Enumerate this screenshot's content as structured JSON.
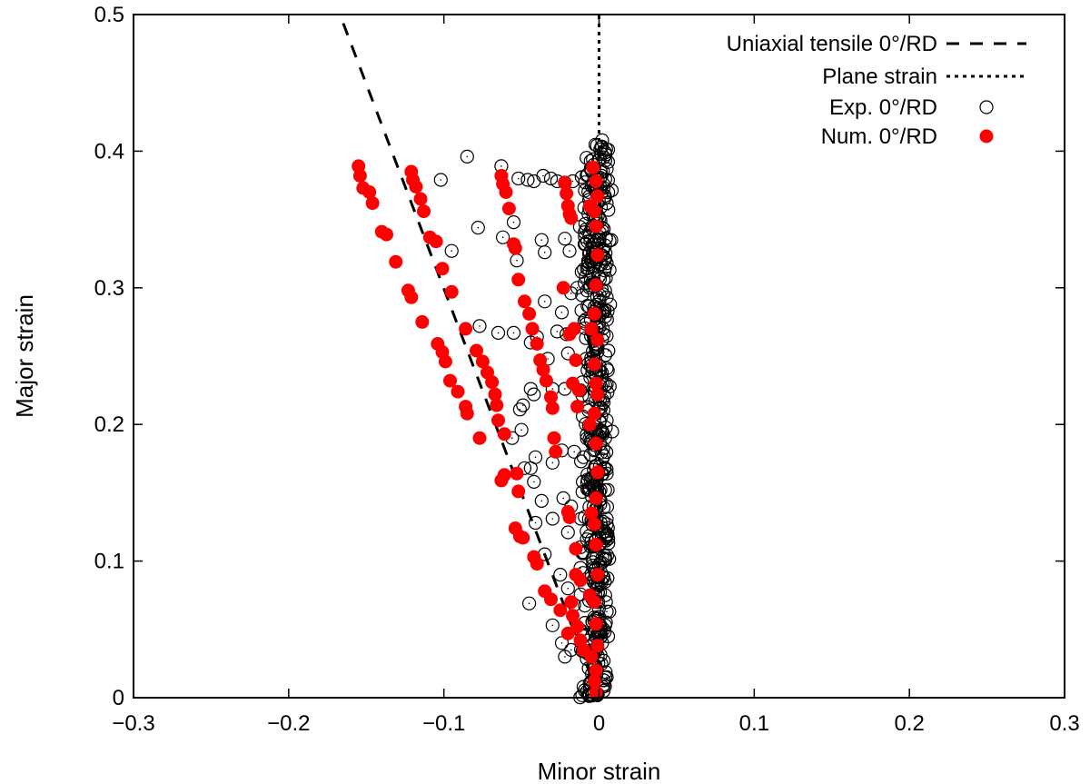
{
  "chart_data": {
    "type": "scatter",
    "title": "",
    "xlabel": "Minor strain",
    "ylabel": "Major strain",
    "xlim": [
      -0.3,
      0.3
    ],
    "ylim": [
      0,
      0.5
    ],
    "x_ticks": [
      -0.3,
      -0.2,
      -0.1,
      0,
      0.1,
      0.2,
      0.3
    ],
    "x_tick_labels": [
      "−0.3",
      "−0.2",
      "−0.1",
      "0",
      "0.1",
      "0.2",
      "0.3"
    ],
    "y_ticks": [
      0,
      0.1,
      0.2,
      0.3,
      0.4,
      0.5
    ],
    "y_tick_labels": [
      "0",
      "0.1",
      "0.2",
      "0.3",
      "0.4",
      "0.5"
    ],
    "grid": false,
    "legend_position": "top-right",
    "series": [
      {
        "name": "Uniaxial tensile 0°/RD",
        "kind": "line",
        "style": "dashed",
        "color": "#000000",
        "points": [
          [
            0,
            0
          ],
          [
            -0.167,
            0.5
          ]
        ]
      },
      {
        "name": "Plane strain",
        "kind": "line",
        "style": "dotted",
        "color": "#000000",
        "points": [
          [
            0,
            0
          ],
          [
            0,
            0.5
          ]
        ]
      },
      {
        "name": "Exp. 0°/RD",
        "kind": "scatter",
        "marker": "open-circle",
        "color": "#000000",
        "points": [
          [
            -0.085,
            0.396
          ],
          [
            -0.102,
            0.379
          ],
          [
            -0.063,
            0.389
          ],
          [
            -0.052,
            0.38
          ],
          [
            -0.046,
            0.379
          ],
          [
            -0.042,
            0.378
          ],
          [
            -0.036,
            0.382
          ],
          [
            -0.031,
            0.38
          ],
          [
            -0.027,
            0.378
          ],
          [
            -0.022,
            0.377
          ],
          [
            -0.017,
            0.378
          ],
          [
            -0.095,
            0.327
          ],
          [
            -0.078,
            0.344
          ],
          [
            -0.062,
            0.337
          ],
          [
            -0.055,
            0.348
          ],
          [
            -0.053,
            0.32
          ],
          [
            -0.037,
            0.335
          ],
          [
            -0.035,
            0.326
          ],
          [
            -0.022,
            0.336
          ],
          [
            -0.019,
            0.327
          ],
          [
            -0.018,
            0.296
          ],
          [
            -0.024,
            0.282
          ],
          [
            -0.014,
            0.3
          ],
          [
            -0.035,
            0.29
          ],
          [
            -0.077,
            0.272
          ],
          [
            -0.065,
            0.267
          ],
          [
            -0.055,
            0.267
          ],
          [
            -0.044,
            0.26
          ],
          [
            -0.04,
            0.264
          ],
          [
            -0.027,
            0.268
          ],
          [
            -0.021,
            0.266
          ],
          [
            -0.02,
            0.252
          ],
          [
            -0.033,
            0.248
          ],
          [
            -0.044,
            0.226
          ],
          [
            -0.049,
            0.214
          ],
          [
            -0.051,
            0.211
          ],
          [
            -0.042,
            0.222
          ],
          [
            -0.03,
            0.226
          ],
          [
            -0.022,
            0.226
          ],
          [
            -0.012,
            0.225
          ],
          [
            -0.05,
            0.196
          ],
          [
            -0.056,
            0.19
          ],
          [
            -0.048,
            0.168
          ],
          [
            -0.044,
            0.168
          ],
          [
            -0.041,
            0.176
          ],
          [
            -0.03,
            0.172
          ],
          [
            -0.024,
            0.181
          ],
          [
            -0.016,
            0.18
          ],
          [
            -0.042,
            0.158
          ],
          [
            -0.037,
            0.144
          ],
          [
            -0.03,
            0.131
          ],
          [
            -0.023,
            0.146
          ],
          [
            -0.018,
            0.14
          ],
          [
            -0.041,
            0.128
          ],
          [
            -0.02,
            0.121
          ],
          [
            -0.045,
            0.069
          ],
          [
            -0.035,
            0.105
          ],
          [
            -0.025,
            0.09
          ],
          [
            -0.012,
            0.095
          ],
          [
            -0.02,
            0.08
          ],
          [
            -0.016,
            0.068
          ],
          [
            -0.03,
            0.053
          ],
          [
            -0.024,
            0.04
          ],
          [
            -0.018,
            0.035
          ],
          [
            -0.022,
            0.03
          ],
          [
            -0.012,
            0.049
          ],
          [
            0.002,
            0.408
          ],
          [
            0.004,
            0.399
          ],
          [
            0.005,
            0.387
          ],
          [
            0.003,
            0.373
          ],
          [
            0.006,
            0.357
          ],
          [
            0.002,
            0.344
          ],
          [
            0.004,
            0.331
          ],
          [
            0.005,
            0.318
          ],
          [
            0.003,
            0.306
          ],
          [
            0.005,
            0.293
          ],
          [
            0.004,
            0.279
          ],
          [
            0.003,
            0.266
          ],
          [
            0.006,
            0.254
          ],
          [
            0.005,
            0.241
          ],
          [
            0.004,
            0.229
          ],
          [
            0.003,
            0.216
          ],
          [
            0.005,
            0.203
          ],
          [
            0.004,
            0.19
          ],
          [
            0.003,
            0.177
          ],
          [
            0.005,
            0.164
          ],
          [
            0.004,
            0.152
          ],
          [
            0.003,
            0.139
          ],
          [
            0.005,
            0.127
          ],
          [
            0.006,
            0.113
          ],
          [
            0.004,
            0.101
          ],
          [
            0.003,
            0.088
          ],
          [
            0.004,
            0.075
          ],
          [
            0.005,
            0.063
          ],
          [
            0.004,
            0.053
          ],
          [
            0.002,
            0.04
          ],
          [
            0.003,
            0.027
          ],
          [
            0.005,
            0.015
          ],
          [
            0.003,
            0.005
          ],
          [
            -0.006,
            0.002
          ],
          [
            -0.01,
            0.008
          ],
          [
            -0.005,
            0.012
          ]
        ],
        "band": {
          "x_center": -0.002,
          "x_spread": 0.011,
          "y_range": [
            0.0,
            0.405
          ],
          "count": 520
        }
      },
      {
        "name": "Num. 0°/RD",
        "kind": "scatter",
        "marker": "filled-circle",
        "color": "#ff0000",
        "points": [
          [
            -0.155,
            0.389
          ],
          [
            -0.154,
            0.382
          ],
          [
            -0.152,
            0.373
          ],
          [
            -0.148,
            0.37
          ],
          [
            -0.146,
            0.362
          ],
          [
            -0.14,
            0.341
          ],
          [
            -0.137,
            0.339
          ],
          [
            -0.131,
            0.319
          ],
          [
            -0.123,
            0.298
          ],
          [
            -0.121,
            0.293
          ],
          [
            -0.114,
            0.275
          ],
          [
            -0.104,
            0.259
          ],
          [
            -0.101,
            0.253
          ],
          [
            -0.099,
            0.246
          ],
          [
            -0.096,
            0.232
          ],
          [
            -0.091,
            0.224
          ],
          [
            -0.086,
            0.213
          ],
          [
            -0.085,
            0.208
          ],
          [
            -0.077,
            0.19
          ],
          [
            -0.063,
            0.159
          ],
          [
            -0.121,
            0.385
          ],
          [
            -0.12,
            0.379
          ],
          [
            -0.118,
            0.374
          ],
          [
            -0.115,
            0.365
          ],
          [
            -0.113,
            0.356
          ],
          [
            -0.109,
            0.337
          ],
          [
            -0.105,
            0.334
          ],
          [
            -0.101,
            0.314
          ],
          [
            -0.095,
            0.297
          ],
          [
            -0.086,
            0.27
          ],
          [
            -0.079,
            0.254
          ],
          [
            -0.075,
            0.246
          ],
          [
            -0.072,
            0.238
          ],
          [
            -0.069,
            0.231
          ],
          [
            -0.067,
            0.222
          ],
          [
            -0.066,
            0.214
          ],
          [
            -0.065,
            0.203
          ],
          [
            -0.061,
            0.193
          ],
          [
            -0.061,
            0.163
          ],
          [
            -0.063,
            0.382
          ],
          [
            -0.062,
            0.376
          ],
          [
            -0.06,
            0.37
          ],
          [
            -0.058,
            0.358
          ],
          [
            -0.055,
            0.332
          ],
          [
            -0.054,
            0.329
          ],
          [
            -0.052,
            0.306
          ],
          [
            -0.048,
            0.29
          ],
          [
            -0.045,
            0.281
          ],
          [
            -0.043,
            0.27
          ],
          [
            -0.04,
            0.259
          ],
          [
            -0.038,
            0.247
          ],
          [
            -0.036,
            0.24
          ],
          [
            -0.034,
            0.232
          ],
          [
            -0.031,
            0.22
          ],
          [
            -0.03,
            0.212
          ],
          [
            -0.029,
            0.19
          ],
          [
            -0.028,
            0.18
          ],
          [
            -0.053,
            0.164
          ],
          [
            -0.052,
            0.151
          ],
          [
            -0.054,
            0.124
          ],
          [
            -0.051,
            0.118
          ],
          [
            -0.049,
            0.117
          ],
          [
            -0.042,
            0.103
          ],
          [
            -0.04,
            0.098
          ],
          [
            -0.035,
            0.078
          ],
          [
            -0.031,
            0.072
          ],
          [
            -0.025,
            0.064
          ],
          [
            -0.018,
            0.07
          ],
          [
            -0.014,
            0.052
          ],
          [
            -0.017,
            0.06
          ],
          [
            -0.02,
            0.047
          ],
          [
            -0.012,
            0.042
          ],
          [
            -0.01,
            0.035
          ],
          [
            -0.022,
            0.377
          ],
          [
            -0.021,
            0.369
          ],
          [
            -0.02,
            0.36
          ],
          [
            -0.019,
            0.354
          ],
          [
            -0.018,
            0.351
          ],
          [
            -0.023,
            0.3
          ],
          [
            -0.016,
            0.27
          ],
          [
            -0.019,
            0.266
          ],
          [
            -0.015,
            0.247
          ],
          [
            -0.017,
            0.23
          ],
          [
            -0.013,
            0.225
          ],
          [
            -0.014,
            0.213
          ],
          [
            -0.02,
            0.136
          ],
          [
            -0.019,
            0.132
          ],
          [
            -0.015,
            0.109
          ],
          [
            -0.015,
            0.09
          ],
          [
            -0.012,
            0.086
          ],
          [
            -0.004,
            0.388
          ],
          [
            -0.002,
            0.378
          ],
          [
            -0.001,
            0.367
          ],
          [
            -0.003,
            0.356
          ],
          [
            -0.002,
            0.345
          ],
          [
            -0.001,
            0.324
          ],
          [
            -0.002,
            0.302
          ],
          [
            -0.003,
            0.281
          ],
          [
            -0.001,
            0.262
          ],
          [
            -0.003,
            0.244
          ],
          [
            -0.002,
            0.23
          ],
          [
            -0.001,
            0.222
          ],
          [
            -0.003,
            0.208
          ],
          [
            -0.002,
            0.186
          ],
          [
            -0.001,
            0.165
          ],
          [
            -0.002,
            0.146
          ],
          [
            -0.003,
            0.127
          ],
          [
            -0.002,
            0.112
          ],
          [
            -0.001,
            0.09
          ],
          [
            -0.003,
            0.07
          ],
          [
            -0.002,
            0.054
          ],
          [
            -0.001,
            0.038
          ],
          [
            -0.002,
            0.02
          ],
          [
            -0.003,
            0.012
          ],
          [
            -0.002,
            0.004
          ],
          [
            -0.006,
            0.36
          ],
          [
            -0.005,
            0.27
          ],
          [
            -0.006,
            0.2
          ],
          [
            -0.005,
            0.135
          ],
          [
            -0.006,
            0.075
          ],
          [
            -0.005,
            0.03
          ]
        ]
      }
    ]
  }
}
